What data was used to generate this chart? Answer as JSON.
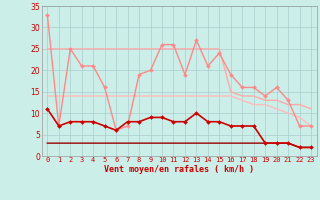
{
  "background_color": "#cceee8",
  "grid_color": "#aacccc",
  "xlabel": "Vent moyen/en rafales ( km/h )",
  "xlim": [
    -0.5,
    23.5
  ],
  "ylim": [
    0,
    35
  ],
  "yticks": [
    0,
    5,
    10,
    15,
    20,
    25,
    30,
    35
  ],
  "xticks": [
    0,
    1,
    2,
    3,
    4,
    5,
    6,
    7,
    8,
    9,
    10,
    11,
    12,
    13,
    14,
    15,
    16,
    17,
    18,
    19,
    20,
    21,
    22,
    23
  ],
  "lines": [
    {
      "y": [
        33,
        7,
        25,
        21,
        21,
        16,
        6,
        7,
        19,
        20,
        26,
        26,
        19,
        27,
        21,
        24,
        19,
        16,
        16,
        14,
        16,
        13,
        7,
        7
      ],
      "color": "#ff8888",
      "lw": 1.0,
      "marker": "D",
      "ms": 2.0,
      "zorder": 3
    },
    {
      "y": [
        25,
        25,
        25,
        25,
        25,
        25,
        25,
        25,
        25,
        25,
        25,
        25,
        25,
        25,
        25,
        25,
        15,
        14,
        14,
        13,
        13,
        12,
        12,
        11
      ],
      "color": "#ffaaaa",
      "lw": 1.0,
      "marker": null,
      "ms": 0,
      "zorder": 2
    },
    {
      "y": [
        14,
        14,
        14,
        14,
        14,
        14,
        14,
        14,
        14,
        14,
        14,
        14,
        14,
        14,
        14,
        14,
        14,
        13,
        12,
        12,
        11,
        10,
        9,
        7
      ],
      "color": "#ffbbbb",
      "lw": 1.0,
      "marker": null,
      "ms": 0,
      "zorder": 2
    },
    {
      "y": [
        11,
        7,
        8,
        8,
        8,
        7,
        6,
        8,
        8,
        9,
        9,
        8,
        8,
        10,
        8,
        8,
        7,
        7,
        7,
        3,
        3,
        3,
        2,
        2
      ],
      "color": "#cc0000",
      "lw": 1.2,
      "marker": "D",
      "ms": 2.0,
      "zorder": 4
    },
    {
      "y": [
        3,
        3,
        3,
        3,
        3,
        3,
        3,
        3,
        3,
        3,
        3,
        3,
        3,
        3,
        3,
        3,
        3,
        3,
        3,
        3,
        3,
        3,
        2,
        2
      ],
      "color": "#990000",
      "lw": 1.0,
      "marker": null,
      "ms": 0,
      "zorder": 2
    }
  ],
  "tick_color": "#cc0000",
  "tick_fontsize": 5.0,
  "ytick_fontsize": 5.5,
  "xlabel_fontsize": 6.0
}
